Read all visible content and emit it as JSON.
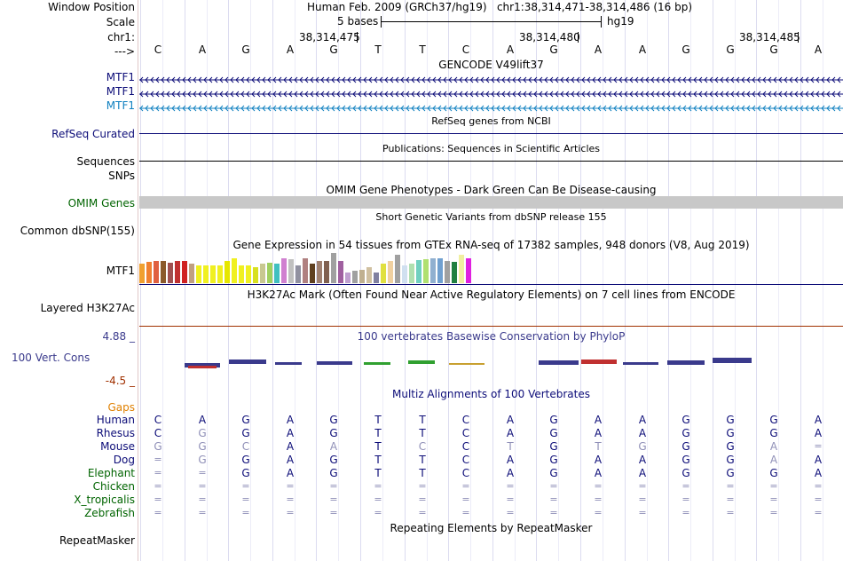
{
  "header": {
    "window_position_label": "Window Position",
    "window_position_value": "Human Feb. 2009 (GRCh37/hg19)   chr1:38,314,471-38,314,486 (16 bp)",
    "scale_label": "Scale",
    "scale_text": "5 bases",
    "scale_assembly": "hg19",
    "chrom_label": "chr1:",
    "coords": [
      "38,314,475",
      "38,314,480",
      "38,314,485"
    ],
    "strand_label": "--->"
  },
  "sequence": [
    "C",
    "A",
    "G",
    "A",
    "G",
    "T",
    "T",
    "C",
    "A",
    "G",
    "A",
    "A",
    "G",
    "G",
    "G",
    "A"
  ],
  "tracks": {
    "gencode": {
      "title": "GENCODE V49lift37",
      "genes": [
        "MTF1",
        "MTF1",
        "MTF1"
      ]
    },
    "refseq": {
      "title": "RefSeq genes from NCBI",
      "label": "RefSeq Curated"
    },
    "publications": {
      "title": "Publications: Sequences in Scientific Articles",
      "label": "Sequences"
    },
    "snps": {
      "label": "SNPs"
    },
    "omim": {
      "title": "OMIM Gene Phenotypes - Dark Green Can Be Disease-causing",
      "label": "OMIM Genes"
    },
    "dbsnp": {
      "title": "Short Genetic Variants from dbSNP release 155",
      "label": "Common dbSNP(155)"
    },
    "gtex": {
      "title": "Gene Expression in 54 tissues from GTEx RNA-seq of 17382 samples, 948 donors (V8, Aug 2019)",
      "label": "MTF1"
    },
    "h3k27ac": {
      "title": "H3K27Ac Mark (Often Found Near Active Regulatory Elements) on 7 cell lines from ENCODE",
      "label": "Layered H3K27Ac"
    },
    "phylop": {
      "title": "100 vertebrates Basewise Conservation by PhyloP",
      "label": "100 Vert. Cons",
      "max": "4.88 _",
      "min": "-4.5 _"
    },
    "multiz": {
      "title": "Multiz Alignments of 100 Vertebrates",
      "gaps_label": "Gaps"
    },
    "repeatmasker": {
      "title": "Repeating Elements by RepeatMasker",
      "label": "RepeatMasker"
    }
  },
  "alignment": [
    {
      "species": "Human",
      "bases": [
        "C",
        "A",
        "G",
        "A",
        "G",
        "T",
        "T",
        "C",
        "A",
        "G",
        "A",
        "A",
        "G",
        "G",
        "G",
        "A"
      ]
    },
    {
      "species": "Rhesus",
      "bases": [
        "C",
        "G",
        "G",
        "A",
        "G",
        "T",
        "T",
        "C",
        "A",
        "G",
        "A",
        "A",
        "G",
        "G",
        "G",
        "A"
      ]
    },
    {
      "species": "Mouse",
      "bases": [
        "G",
        "G",
        "C",
        "A",
        "A",
        "T",
        "C",
        "C",
        "T",
        "G",
        "T",
        "G",
        "G",
        "G",
        "A",
        "="
      ]
    },
    {
      "species": "Dog",
      "bases": [
        "=",
        "G",
        "G",
        "A",
        "G",
        "T",
        "T",
        "C",
        "A",
        "G",
        "A",
        "A",
        "G",
        "G",
        "A",
        "A"
      ]
    },
    {
      "species": "Elephant",
      "bases": [
        "=",
        "=",
        "G",
        "A",
        "G",
        "T",
        "T",
        "C",
        "A",
        "G",
        "A",
        "A",
        "G",
        "G",
        "G",
        "A"
      ]
    },
    {
      "species": "Chicken",
      "bases": [
        "=",
        "=",
        "=",
        "=",
        "=",
        "=",
        "=",
        "=",
        "=",
        "=",
        "=",
        "=",
        "=",
        "=",
        "=",
        "="
      ]
    },
    {
      "species": "X_tropicalis",
      "bases": [
        "=",
        "=",
        "=",
        "=",
        "=",
        "=",
        "=",
        "=",
        "=",
        "=",
        "=",
        "=",
        "=",
        "=",
        "=",
        "="
      ]
    },
    {
      "species": "Zebrafish",
      "bases": [
        "=",
        "=",
        "=",
        "=",
        "=",
        "=",
        "=",
        "=",
        "=",
        "=",
        "=",
        "=",
        "=",
        "=",
        "=",
        "="
      ]
    }
  ],
  "colors": {
    "gene_dark": "#0c0c78",
    "gene_light": "#1080c0",
    "omim_grey": "#c8c8c8",
    "omim_title": "#006400",
    "phylop": "#3a3a8c",
    "phylop_neg": "#a03000",
    "gaps": "#e08000",
    "align_species": "#0c0c78",
    "diff_base": "#9090b8"
  }
}
